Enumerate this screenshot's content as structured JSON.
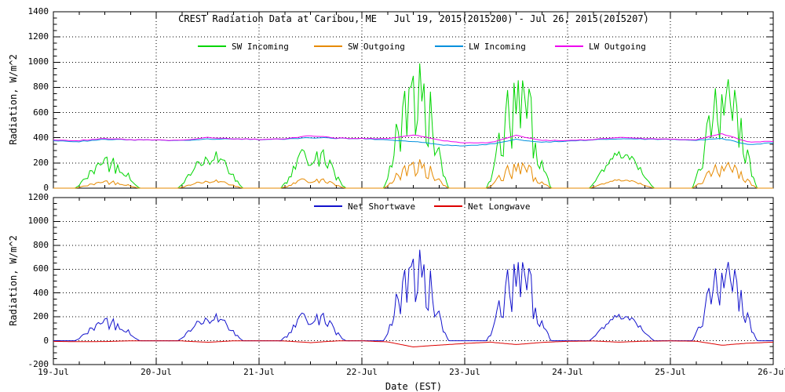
{
  "title": "CREST Radiation Data at Caribou, ME   Jul 19, 2015(2015200) - Jul 26, 2015(2015207)",
  "xlabel": "Date (EST)",
  "x_tick_labels": [
    "19-Jul",
    "20-Jul",
    "21-Jul",
    "22-Jul",
    "23-Jul",
    "24-Jul",
    "25-Jul",
    "26-Jul"
  ],
  "colors": {
    "sw_incoming": "#00d500",
    "sw_outgoing": "#e68a00",
    "lw_incoming": "#0090dd",
    "lw_outgoing": "#ee00ee",
    "net_shortwave": "#1212cc",
    "net_longwave": "#dd0000",
    "axis": "#000000",
    "background": "#ffffff"
  },
  "chart_data": [
    {
      "type": "line",
      "panel": "top",
      "ylabel": "Radiation, W/m^2",
      "ylim": [
        0,
        1400
      ],
      "ytick_step": 200,
      "yminor_step": 50,
      "x_range_days": 7,
      "x_minor_ticks_per_day": 4,
      "grid": "dotted",
      "legend_position": "top-inside",
      "legend": [
        {
          "label": "SW Incoming",
          "color": "#00d500"
        },
        {
          "label": "SW Outgoing",
          "color": "#e68a00"
        },
        {
          "label": "LW Incoming",
          "color": "#0090dd"
        },
        {
          "label": "LW Outgoing",
          "color": "#ee00ee"
        }
      ],
      "series": [
        {
          "name": "SW Incoming",
          "color": "#00d500",
          "kind": "diurnal",
          "sunrise_h": 5.0,
          "sunset_h": 20.3,
          "daily_peak": [
            255,
            310,
            390,
            1020,
            930,
            295,
            870
          ],
          "cloud_jag": [
            0.55,
            0.4,
            0.55,
            0.6,
            0.65,
            0.25,
            0.55
          ]
        },
        {
          "name": "SW Outgoing",
          "color": "#e68a00",
          "kind": "diurnal_scaled",
          "scale_of": "SW Incoming",
          "daily_peak": [
            60,
            70,
            95,
            235,
            215,
            70,
            205
          ]
        },
        {
          "name": "LW Incoming",
          "color": "#0090dd",
          "kind": "control_points",
          "step_h": 6,
          "noise_amp": 7,
          "values": [
            374,
            370,
            386,
            384,
            380,
            378,
            390,
            391,
            386,
            391,
            401,
            395,
            394,
            382,
            371,
            345,
            337,
            350,
            387,
            367,
            372,
            385,
            391,
            389,
            385,
            379,
            394,
            346,
            359
          ]
        },
        {
          "name": "LW Outgoing",
          "color": "#ee00ee",
          "kind": "control_points",
          "step_h": 6,
          "noise_amp": 6,
          "values": [
            380,
            378,
            393,
            385,
            381,
            380,
            403,
            392,
            387,
            393,
            417,
            397,
            395,
            392,
            423,
            382,
            360,
            362,
            419,
            381,
            377,
            387,
            403,
            393,
            387,
            383,
            432,
            367,
            371
          ]
        }
      ]
    },
    {
      "type": "line",
      "panel": "bottom",
      "ylabel": "Radiation, W/m^2",
      "ylim": [
        -200,
        1200
      ],
      "ytick_step": 200,
      "yminor_step": 50,
      "x_range_days": 7,
      "x_minor_ticks_per_day": 4,
      "grid": "dotted",
      "legend_position": "top-inside",
      "legend": [
        {
          "label": "Net Shortwave",
          "color": "#1212cc"
        },
        {
          "label": "Net Longwave",
          "color": "#dd0000"
        }
      ],
      "series": [
        {
          "name": "Net Shortwave",
          "color": "#1212cc",
          "kind": "difference",
          "minuend": "SW Incoming",
          "subtrahend": "SW Outgoing",
          "daily_peak_readout": [
            165,
            215,
            295,
            800,
            700,
            230,
            680
          ]
        },
        {
          "name": "Net Longwave",
          "color": "#dd0000",
          "kind": "difference",
          "minuend": "LW Incoming",
          "subtrahend": "LW Outgoing",
          "midday_min_readout": [
            -15,
            -25,
            -30,
            -55,
            -35,
            -20,
            -55
          ]
        }
      ]
    }
  ]
}
